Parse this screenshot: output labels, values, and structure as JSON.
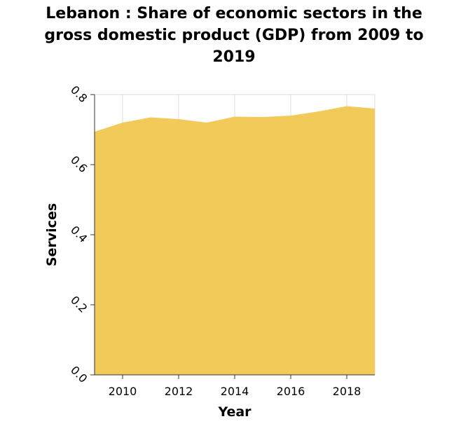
{
  "chart_data": {
    "type": "area",
    "title_lines": [
      "Lebanon : Share of economic sectors in the",
      "gross domestic product (GDP) from 2009 to",
      "2019"
    ],
    "xlabel": "Year",
    "ylabel": "Services",
    "x": [
      2009,
      2010,
      2011,
      2012,
      2013,
      2014,
      2015,
      2016,
      2017,
      2018,
      2019
    ],
    "series": [
      {
        "values": [
          0.694,
          0.72,
          0.735,
          0.73,
          0.72,
          0.737,
          0.736,
          0.74,
          0.752,
          0.767,
          0.76
        ]
      }
    ],
    "xlim": [
      2009,
      2019
    ],
    "ylim": [
      0,
      0.8
    ],
    "xticks": [
      "2010",
      "2012",
      "2014",
      "2016",
      "2018"
    ],
    "yticks": [
      "0.0",
      "0.2",
      "0.4",
      "0.6",
      "0.8"
    ],
    "grid": true,
    "colors": {
      "fill": "#f2ca5a",
      "grid": "#dddddd",
      "axis": "#333333"
    }
  }
}
